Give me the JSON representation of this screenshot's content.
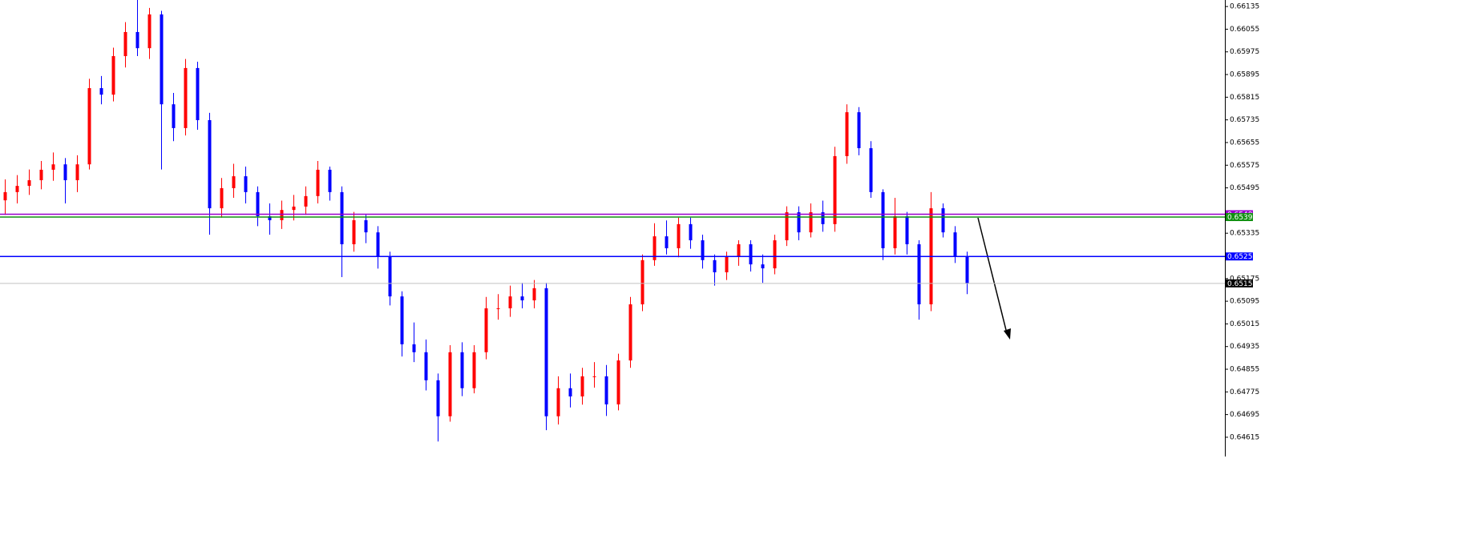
{
  "chart_data": {
    "type": "candlestick",
    "ylim": [
      0.64547,
      0.66158
    ],
    "yticks": [
      0.66135,
      0.66055,
      0.65975,
      0.65895,
      0.65815,
      0.65735,
      0.65655,
      0.65575,
      0.65495,
      0.65335,
      0.65175,
      0.65095,
      0.65015,
      0.64935,
      0.64855,
      0.64775,
      0.64695,
      0.64615
    ],
    "up_color": "#ff0000",
    "down_color": "#0000ff",
    "candles": [
      [
        0.65451,
        0.65525,
        0.654,
        0.6548
      ],
      [
        0.6548,
        0.6554,
        0.6544,
        0.65502
      ],
      [
        0.65502,
        0.6556,
        0.6547,
        0.65522
      ],
      [
        0.65522,
        0.6559,
        0.6549,
        0.65559
      ],
      [
        0.65559,
        0.6562,
        0.6552,
        0.65578
      ],
      [
        0.65578,
        0.656,
        0.6544,
        0.65522
      ],
      [
        0.65522,
        0.6561,
        0.6548,
        0.65578
      ],
      [
        0.65578,
        0.6588,
        0.6556,
        0.65847
      ],
      [
        0.65847,
        0.6589,
        0.6579,
        0.65824
      ],
      [
        0.65824,
        0.6599,
        0.658,
        0.6596
      ],
      [
        0.6596,
        0.6608,
        0.6592,
        0.66045
      ],
      [
        0.66045,
        0.66158,
        0.6596,
        0.65988
      ],
      [
        0.65988,
        0.6613,
        0.6595,
        0.66107
      ],
      [
        0.66107,
        0.6612,
        0.6556,
        0.6579
      ],
      [
        0.6579,
        0.6583,
        0.6566,
        0.65706
      ],
      [
        0.65706,
        0.6595,
        0.6568,
        0.65918
      ],
      [
        0.65918,
        0.6594,
        0.657,
        0.65734
      ],
      [
        0.65734,
        0.6576,
        0.6533,
        0.65423
      ],
      [
        0.65423,
        0.6553,
        0.6539,
        0.65494
      ],
      [
        0.65494,
        0.6558,
        0.6546,
        0.65536
      ],
      [
        0.65536,
        0.6557,
        0.6544,
        0.6548
      ],
      [
        0.6548,
        0.655,
        0.6536,
        0.65395
      ],
      [
        0.65395,
        0.6544,
        0.6533,
        0.65381
      ],
      [
        0.65381,
        0.6545,
        0.6535,
        0.65417
      ],
      [
        0.65417,
        0.6547,
        0.6538,
        0.65429
      ],
      [
        0.65429,
        0.655,
        0.654,
        0.65466
      ],
      [
        0.65466,
        0.6559,
        0.6544,
        0.65559
      ],
      [
        0.65559,
        0.6557,
        0.6545,
        0.6548
      ],
      [
        0.6548,
        0.655,
        0.6518,
        0.65296
      ],
      [
        0.65296,
        0.6541,
        0.6527,
        0.65381
      ],
      [
        0.65381,
        0.654,
        0.653,
        0.65338
      ],
      [
        0.65338,
        0.6536,
        0.6521,
        0.65254
      ],
      [
        0.65254,
        0.6527,
        0.6508,
        0.65112
      ],
      [
        0.65112,
        0.6513,
        0.649,
        0.64943
      ],
      [
        0.64943,
        0.6502,
        0.6488,
        0.64915
      ],
      [
        0.64915,
        0.6496,
        0.6478,
        0.64816
      ],
      [
        0.64816,
        0.6484,
        0.646,
        0.64689
      ],
      [
        0.64689,
        0.6494,
        0.6467,
        0.64915
      ],
      [
        0.64915,
        0.6495,
        0.6476,
        0.64788
      ],
      [
        0.64788,
        0.6494,
        0.6477,
        0.64915
      ],
      [
        0.64915,
        0.6511,
        0.6489,
        0.6507
      ],
      [
        0.6507,
        0.6512,
        0.6503,
        0.6507
      ],
      [
        0.6507,
        0.6515,
        0.6504,
        0.65112
      ],
      [
        0.65112,
        0.6516,
        0.6507,
        0.65098
      ],
      [
        0.65098,
        0.6517,
        0.6507,
        0.65141
      ],
      [
        0.65141,
        0.6516,
        0.6464,
        0.64689
      ],
      [
        0.64689,
        0.6483,
        0.6466,
        0.64788
      ],
      [
        0.64788,
        0.6484,
        0.6472,
        0.64759
      ],
      [
        0.64759,
        0.6486,
        0.6473,
        0.6483
      ],
      [
        0.6483,
        0.6488,
        0.6479,
        0.6483
      ],
      [
        0.6483,
        0.6487,
        0.6469,
        0.64731
      ],
      [
        0.64731,
        0.6491,
        0.6471,
        0.64886
      ],
      [
        0.64886,
        0.6511,
        0.6486,
        0.65084
      ],
      [
        0.65084,
        0.6526,
        0.6506,
        0.6524
      ],
      [
        0.6524,
        0.6537,
        0.6522,
        0.65324
      ],
      [
        0.65324,
        0.6538,
        0.6526,
        0.65282
      ],
      [
        0.65282,
        0.6539,
        0.6525,
        0.65367
      ],
      [
        0.65367,
        0.6539,
        0.6528,
        0.6531
      ],
      [
        0.6531,
        0.6533,
        0.6521,
        0.6524
      ],
      [
        0.6524,
        0.6526,
        0.6515,
        0.65197
      ],
      [
        0.65197,
        0.6527,
        0.6517,
        0.65254
      ],
      [
        0.65254,
        0.6531,
        0.6522,
        0.65296
      ],
      [
        0.65296,
        0.6531,
        0.652,
        0.65225
      ],
      [
        0.65225,
        0.6526,
        0.6516,
        0.65211
      ],
      [
        0.65211,
        0.6533,
        0.6519,
        0.6531
      ],
      [
        0.6531,
        0.6543,
        0.6529,
        0.65409
      ],
      [
        0.65409,
        0.6543,
        0.6531,
        0.65338
      ],
      [
        0.65338,
        0.6544,
        0.6532,
        0.65409
      ],
      [
        0.65409,
        0.6545,
        0.6534,
        0.65367
      ],
      [
        0.65367,
        0.6564,
        0.6534,
        0.65607
      ],
      [
        0.65607,
        0.6579,
        0.6558,
        0.65762
      ],
      [
        0.65762,
        0.6578,
        0.6561,
        0.65635
      ],
      [
        0.65635,
        0.6566,
        0.6546,
        0.6548
      ],
      [
        0.6548,
        0.6549,
        0.6524,
        0.65282
      ],
      [
        0.65282,
        0.6546,
        0.6526,
        0.65395
      ],
      [
        0.65395,
        0.6541,
        0.6526,
        0.65296
      ],
      [
        0.65296,
        0.6531,
        0.6503,
        0.65084
      ],
      [
        0.65084,
        0.6548,
        0.6506,
        0.65423
      ],
      [
        0.65423,
        0.6544,
        0.6532,
        0.65338
      ],
      [
        0.65338,
        0.6536,
        0.6523,
        0.65254
      ],
      [
        0.65254,
        0.6527,
        0.6512,
        0.65158
      ]
    ],
    "levels": [
      {
        "value": 0.65402,
        "color": "#9900cc"
      },
      {
        "value": 0.65392,
        "color": "#109010"
      },
      {
        "value": 0.65253,
        "color": "#0000ff"
      },
      {
        "value": 0.65158,
        "color": "#000000"
      }
    ]
  }
}
